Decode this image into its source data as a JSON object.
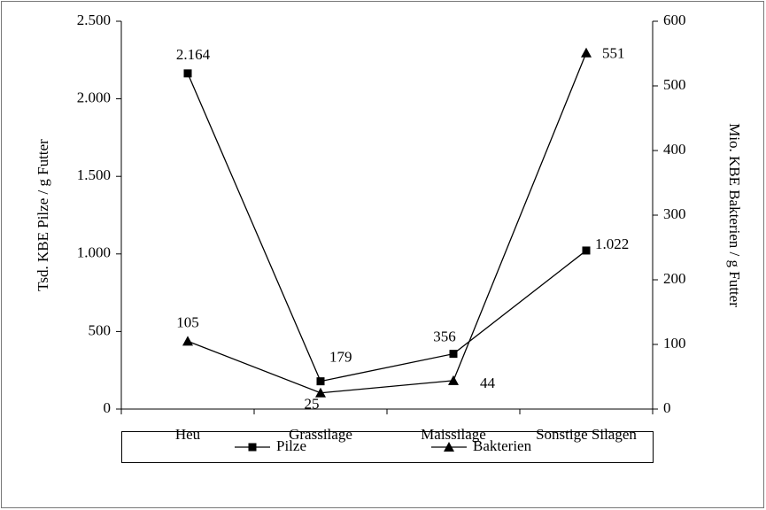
{
  "chart_data": {
    "type": "line",
    "categories": [
      "Heu",
      "Grassilage",
      "Maissilage",
      "Sonstige Silagen"
    ],
    "ylabel": "Tsd. KBE Pilze / g Futter",
    "y2label": "Mio. KBE Bakterien / g Futter",
    "ylim": [
      0,
      2500
    ],
    "yticks": [
      0,
      500,
      {
        "value": 1000,
        "label": "1.000"
      },
      {
        "value": 1500,
        "label": "1.500"
      },
      {
        "value": 2000,
        "label": "2.000"
      },
      {
        "value": 2500,
        "label": "2.500"
      }
    ],
    "y2lim": [
      0,
      600
    ],
    "y2ticks": [
      0,
      100,
      200,
      300,
      400,
      500,
      600
    ],
    "legend": "bottom",
    "series": [
      {
        "name": "Pilze",
        "color": "#000000",
        "marker": "square",
        "values": [
          2164,
          179,
          356,
          1022
        ],
        "value_labels": [
          "2.164",
          "179",
          "356",
          "1.022"
        ]
      },
      {
        "name": "Bakterien",
        "color": "#000000",
        "marker": "triangle",
        "axis": "y2",
        "values": [
          105,
          25,
          44,
          551
        ]
      }
    ]
  }
}
